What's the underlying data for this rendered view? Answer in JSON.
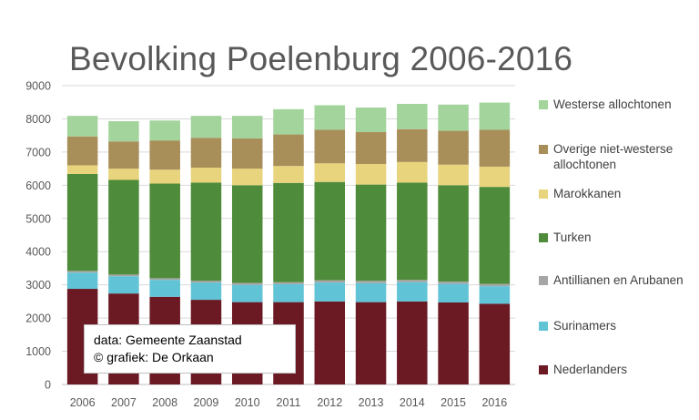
{
  "chart_data": {
    "type": "bar",
    "stacked": true,
    "title": "Bevolking Poelenburg 2006-2016",
    "xlabel": "",
    "ylabel": "",
    "ylim": [
      0,
      9000
    ],
    "yticks": [
      0,
      1000,
      2000,
      3000,
      4000,
      5000,
      6000,
      7000,
      8000,
      9000
    ],
    "grid": true,
    "legend_position": "right",
    "categories": [
      "2006",
      "2007",
      "2008",
      "2009",
      "2010",
      "2011",
      "2012",
      "2013",
      "2014",
      "2015",
      "2016"
    ],
    "series": [
      {
        "name": "Nederlanders",
        "color": "#6b1a24",
        "values": [
          2880,
          2740,
          2640,
          2550,
          2480,
          2480,
          2500,
          2480,
          2500,
          2470,
          2430
        ]
      },
      {
        "name": "Surinamers",
        "color": "#61c3d6",
        "values": [
          490,
          520,
          510,
          520,
          520,
          540,
          570,
          570,
          580,
          560,
          530
        ]
      },
      {
        "name": "Antillianen en Arubanen",
        "color": "#a6a6a6",
        "values": [
          50,
          50,
          50,
          50,
          60,
          60,
          70,
          70,
          70,
          70,
          70
        ]
      },
      {
        "name": "Turken",
        "color": "#4e8b3a",
        "values": [
          2920,
          2850,
          2850,
          2960,
          2940,
          2990,
          2960,
          2900,
          2930,
          2900,
          2920
        ]
      },
      {
        "name": "Marokkanen",
        "color": "#e7d47c",
        "values": [
          260,
          340,
          420,
          450,
          500,
          510,
          560,
          620,
          620,
          620,
          610
        ]
      },
      {
        "name": "Overige niet-westerse allochtonen",
        "color": "#a88f5a",
        "values": [
          870,
          820,
          880,
          900,
          910,
          950,
          1010,
          960,
          990,
          1020,
          1110
        ]
      },
      {
        "name": "Westerse allochtonen",
        "color": "#a3d49c",
        "values": [
          620,
          610,
          600,
          660,
          680,
          760,
          740,
          740,
          760,
          790,
          820
        ]
      }
    ]
  },
  "legend_order": [
    6,
    5,
    4,
    3,
    2,
    1,
    0
  ],
  "source": {
    "line1": "data: Gemeente Zaanstad",
    "line2": "© grafiek: De Orkaan"
  },
  "colors": {
    "grid": "#d9d9d9",
    "axis": "#bfbfbf",
    "tick_text": "#595959",
    "title": "#595959"
  }
}
